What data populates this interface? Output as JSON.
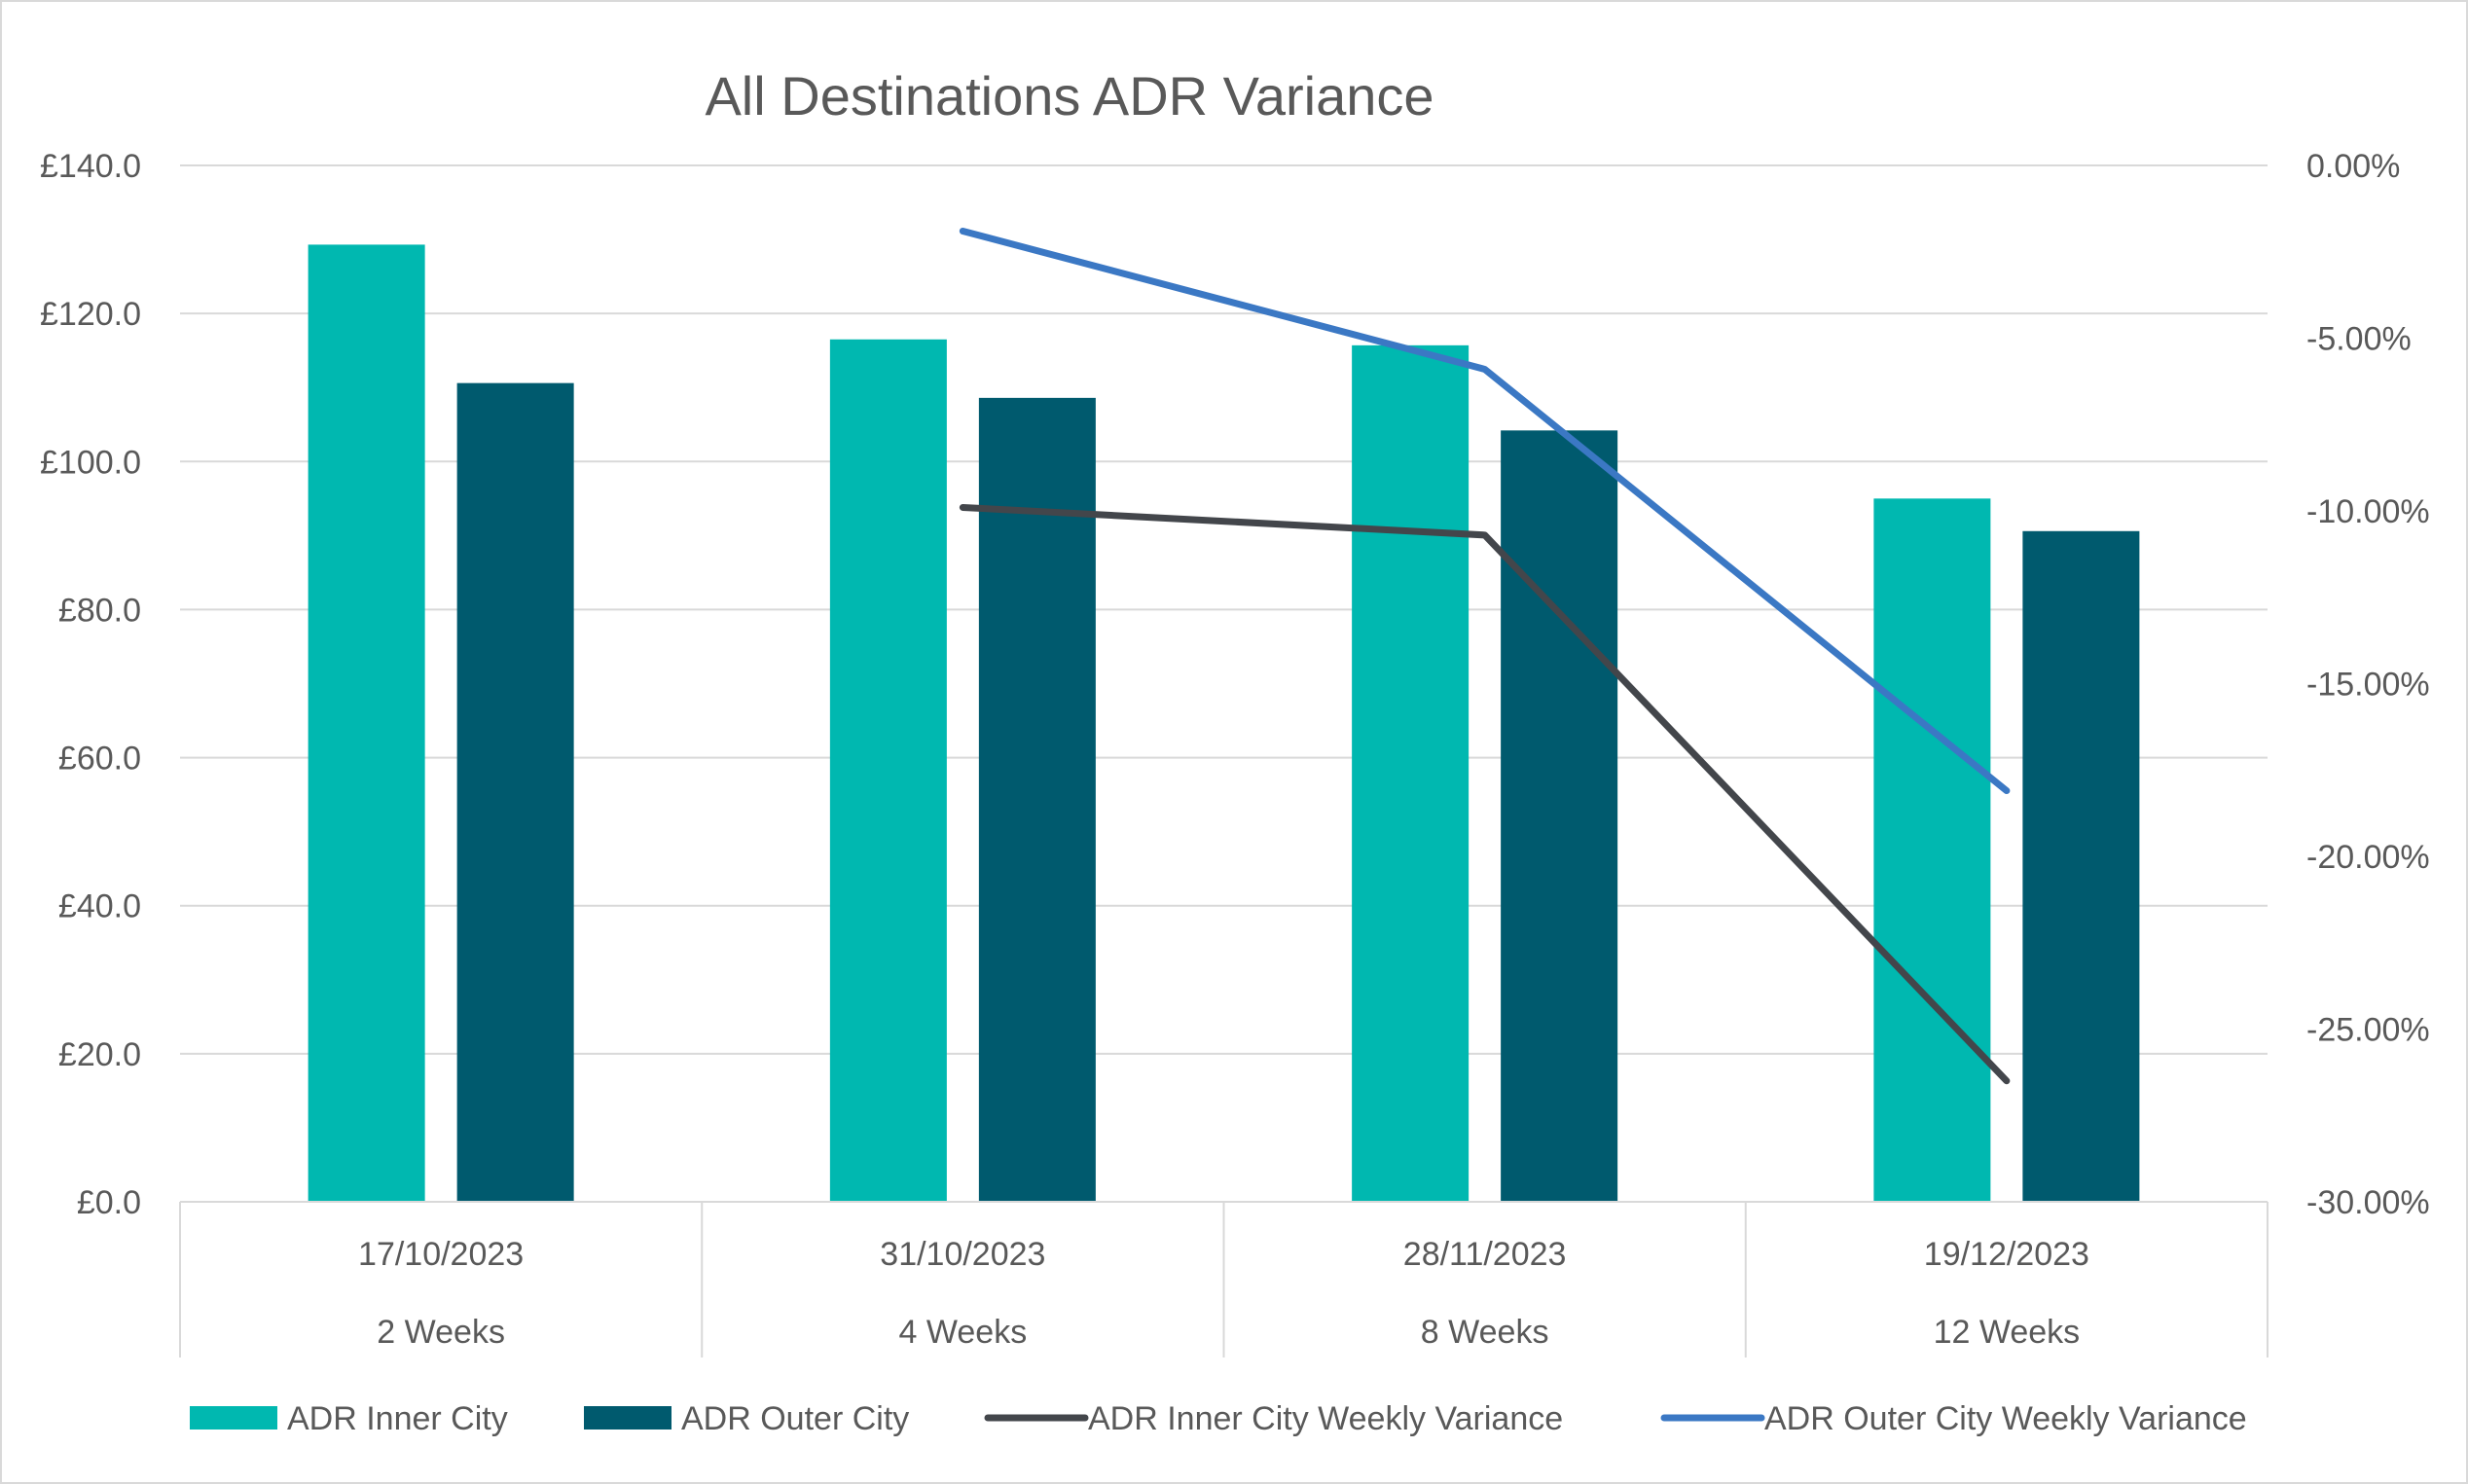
{
  "chart_data": {
    "type": "bar",
    "title": "All Destinations ADR Variance",
    "categories": [
      {
        "date": "17/10/2023",
        "period": "2 Weeks"
      },
      {
        "date": "31/10/2023",
        "period": "4 Weeks"
      },
      {
        "date": "28/11/2023",
        "period": "8 Weeks"
      },
      {
        "date": "19/12/2023",
        "period": "12 Weeks"
      }
    ],
    "bar_series": [
      {
        "name": "ADR Inner City",
        "color": "#00b8b0",
        "values": [
          129.3,
          116.5,
          115.7,
          95.0
        ]
      },
      {
        "name": "ADR Outer City",
        "color": "#005a6e",
        "values": [
          110.6,
          108.6,
          104.2,
          90.6
        ]
      }
    ],
    "line_series": [
      {
        "name": "ADR Inner City Weekly Variance",
        "color": "#43464b",
        "values": [
          null,
          -9.9,
          -10.7,
          -26.5
        ]
      },
      {
        "name": "ADR Outer City Weekly Variance",
        "color": "#3b78c4",
        "values": [
          null,
          -1.9,
          -5.9,
          -18.1
        ]
      }
    ],
    "y_left": {
      "min": 0,
      "max": 140,
      "step": 20,
      "tick_labels": [
        "£0.0",
        "£20.0",
        "£40.0",
        "£60.0",
        "£80.0",
        "£100.0",
        "£120.0",
        "£140.0"
      ]
    },
    "y_right": {
      "min": -30,
      "max": 0,
      "step": 5,
      "tick_labels": [
        "-30.00%",
        "-25.00%",
        "-20.00%",
        "-15.00%",
        "-10.00%",
        "-5.00%",
        "0.00%"
      ]
    },
    "grid": true,
    "legend_position": "bottom"
  }
}
